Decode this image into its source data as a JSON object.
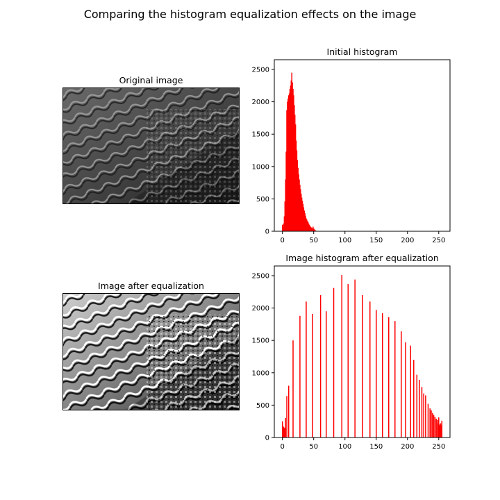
{
  "figure": {
    "title": "Comparing the histogram equalization effects on the image"
  },
  "panels": {
    "original": {
      "title": "Original image"
    },
    "equalized": {
      "title": "Image after equalization"
    }
  },
  "chart_data": [
    {
      "type": "bar",
      "title": "Initial histogram",
      "xlabel": "",
      "ylabel": "",
      "xlim": [
        -13,
        268
      ],
      "ylim": [
        0,
        2650
      ],
      "xticks": [
        0,
        50,
        100,
        150,
        200,
        250
      ],
      "yticks": [
        0,
        500,
        1000,
        1500,
        2000,
        2500
      ],
      "color": "#ff0000",
      "grid": false,
      "bins_x": [
        0,
        1,
        2,
        3,
        4,
        5,
        6,
        7,
        8,
        9,
        10,
        11,
        12,
        13,
        14,
        15,
        16,
        17,
        18,
        19,
        20,
        21,
        22,
        23,
        24,
        25,
        26,
        27,
        28,
        29,
        30,
        31,
        32,
        33,
        34,
        35,
        36,
        37,
        38,
        39,
        40,
        41,
        42,
        43,
        44,
        45,
        46,
        47,
        48,
        49,
        50,
        51,
        52,
        53,
        54,
        55
      ],
      "values": [
        100,
        60,
        120,
        230,
        460,
        800,
        1230,
        1870,
        2000,
        2050,
        2100,
        2130,
        2200,
        2250,
        2330,
        2450,
        2300,
        2200,
        2100,
        1950,
        1800,
        1650,
        1400,
        1250,
        1100,
        980,
        880,
        800,
        720,
        650,
        580,
        520,
        470,
        420,
        370,
        320,
        280,
        240,
        200,
        180,
        160,
        140,
        120,
        100,
        85,
        70,
        60,
        50,
        40,
        70,
        45,
        30,
        20,
        12,
        6,
        3
      ]
    },
    {
      "type": "bar",
      "title": "Image histogram after equalization",
      "xlabel": "",
      "ylabel": "",
      "xlim": [
        -13,
        268
      ],
      "ylim": [
        0,
        2650
      ],
      "xticks": [
        0,
        50,
        100,
        150,
        200,
        250
      ],
      "yticks": [
        0,
        500,
        1000,
        1500,
        2000,
        2500
      ],
      "color": "#ff0000",
      "grid": false,
      "bins_x": [
        0,
        1,
        2,
        3,
        4,
        5,
        7,
        10,
        17,
        28,
        38,
        48,
        61,
        70,
        82,
        95,
        105,
        116,
        128,
        140,
        150,
        160,
        170,
        180,
        190,
        197,
        205,
        210,
        215,
        219,
        223,
        226,
        229,
        233,
        236,
        238,
        240,
        242,
        244,
        246,
        248,
        249,
        250,
        251,
        252,
        253,
        254,
        255
      ],
      "values": [
        250,
        180,
        160,
        140,
        150,
        300,
        640,
        800,
        1500,
        1880,
        2100,
        1910,
        2200,
        1950,
        2310,
        2510,
        2370,
        2440,
        2200,
        2100,
        1970,
        1920,
        1860,
        1800,
        1640,
        1470,
        1420,
        1200,
        970,
        890,
        780,
        680,
        650,
        520,
        450,
        420,
        380,
        350,
        320,
        290,
        270,
        220,
        310,
        200,
        180,
        220,
        190,
        260
      ]
    }
  ]
}
